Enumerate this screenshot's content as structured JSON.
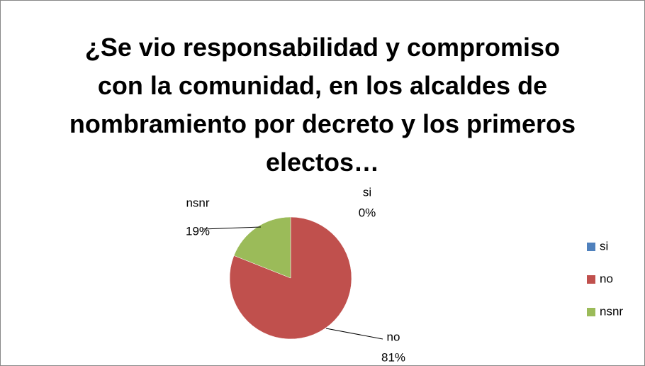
{
  "chart_data": {
    "type": "pie",
    "title": "¿Se vio responsabilidad y compromiso con la comunidad, en los alcaldes de nombramiento por decreto y los primeros electos…",
    "categories": [
      "si",
      "no",
      "nsnr"
    ],
    "values": [
      0,
      81,
      19
    ],
    "value_labels": [
      "0%",
      "81%",
      "19%"
    ],
    "colors": [
      "#4f81bd",
      "#c0504d",
      "#9bbb59"
    ],
    "legend": "right"
  }
}
